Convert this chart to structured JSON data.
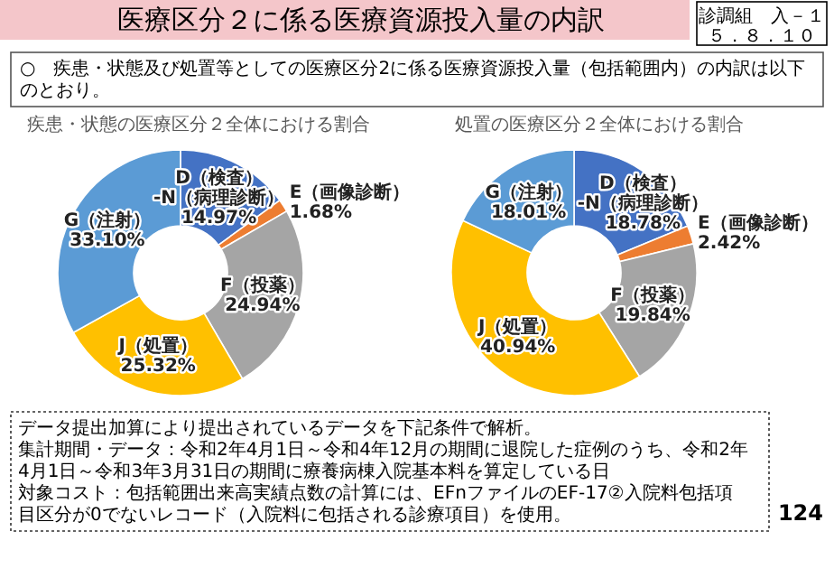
{
  "chart_data": [
    {
      "type": "donut",
      "title": "疾患・状態の医療区分２全体における割合",
      "categories": [
        "D（検査）-N（病理診断）",
        "E（画像診断）",
        "F（投薬）",
        "J（処置）",
        "G（注射）"
      ],
      "values": [
        14.97,
        1.68,
        24.94,
        25.32,
        33.1
      ],
      "value_labels": [
        "14.97%",
        "1.68%",
        "24.94%",
        "25.32%",
        "33.10%"
      ],
      "colors": [
        "#4472c4",
        "#ed7d31",
        "#a5a5a5",
        "#ffc000",
        "#5b9bd5"
      ],
      "annotations": [
        "医療区分２に係る医療資源投入量の内訳",
        "診調組　入－１",
        "５．８．１０",
        "○　疾患・状態及び処置等としての医療区分2に係る医療資源投入量（包括範囲内）の内訳は以下のとおり。",
        "データ提出加算により提出されているデータを下記条件で解析。",
        "集計期間・データ：令和2年4月1日～令和4年12月の期間に退院した症例のうち、令和2年4月1日～令和3年3月31日の期間に療養病棟入院基本料を算定している日",
        "対象コスト：包括範囲出来高実績点数の計算には、EFnファイルのEF-17②入院料包括項目区分が0でないレコード（入院料に包括される診療項目）を使用。",
        "124"
      ]
    },
    {
      "type": "donut",
      "title": "処置の医療区分２全体における割合",
      "categories": [
        "D（検査）-N（病理診断）",
        "E（画像診断）",
        "F（投薬）",
        "J（処置）",
        "G（注射）"
      ],
      "values": [
        18.78,
        2.42,
        19.84,
        40.94,
        18.01
      ],
      "value_labels": [
        "18.78%",
        "2.42%",
        "19.84%",
        "40.94%",
        "18.01%"
      ],
      "colors": [
        "#4472c4",
        "#ed7d31",
        "#a5a5a5",
        "#ffc000",
        "#5b9bd5"
      ]
    }
  ]
}
